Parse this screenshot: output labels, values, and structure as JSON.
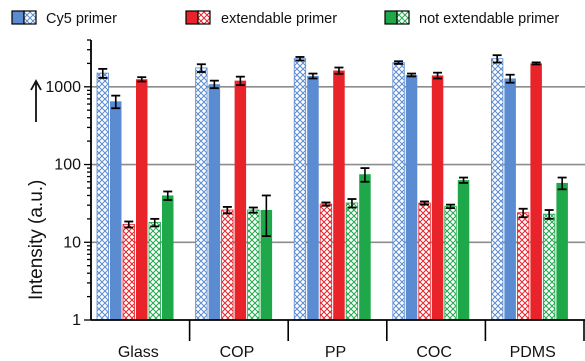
{
  "chart_data": {
    "type": "bar",
    "yscale": "log",
    "ylim": [
      1,
      4000
    ],
    "ylabel": "Intensity  (a.u.)",
    "yticks": [
      1,
      10,
      100,
      1000
    ],
    "ytick_labels": [
      "1",
      "10",
      "100",
      "1000"
    ],
    "grid": "horizontal at decades",
    "legend_position": "top",
    "categories": [
      "Glass",
      "COP",
      "PP",
      "COC",
      "PDMS"
    ],
    "legend": [
      {
        "label": "Cy5 primer",
        "color": "#5b8bd0"
      },
      {
        "label": "extendable primer",
        "color": "#e8242a"
      },
      {
        "label": "not extendable primer",
        "color": "#1fa84a"
      }
    ],
    "series": [
      {
        "name": "Cy5 primer",
        "color": "#5b8bd0",
        "hatched": true,
        "values": [
          1500,
          1750,
          2300,
          2050,
          2300
        ],
        "errors": [
          200,
          200,
          120,
          80,
          250
        ]
      },
      {
        "name": "Cy5 primer",
        "color": "#5b8bd0",
        "hatched": false,
        "values": [
          650,
          1080,
          1380,
          1420,
          1280
        ],
        "errors": [
          120,
          120,
          100,
          60,
          150
        ]
      },
      {
        "name": "extendable primer",
        "color": "#e8242a",
        "hatched": true,
        "values": [
          17,
          26,
          31,
          32,
          24
        ],
        "errors": [
          1.5,
          2.5,
          1.5,
          1.5,
          3
        ]
      },
      {
        "name": "extendable primer",
        "color": "#e8242a",
        "hatched": false,
        "values": [
          1250,
          1200,
          1620,
          1400,
          2000
        ],
        "errors": [
          80,
          150,
          150,
          120,
          60
        ]
      },
      {
        "name": "not extendable primer",
        "color": "#1fa84a",
        "hatched": true,
        "values": [
          18,
          26,
          32,
          29,
          23
        ],
        "errors": [
          2,
          2,
          4,
          1.5,
          3
        ]
      },
      {
        "name": "not extendable primer",
        "color": "#1fa84a",
        "hatched": false,
        "values": [
          40,
          26,
          75,
          63,
          58
        ],
        "errors": [
          5,
          14,
          15,
          5,
          10
        ]
      }
    ]
  }
}
